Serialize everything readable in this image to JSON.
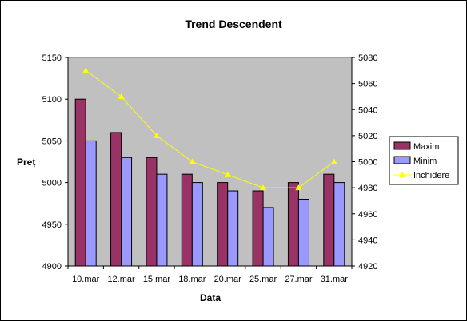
{
  "chart_data": {
    "type": "bar",
    "title": "Trend Descendent",
    "xlabel": "Data",
    "ylabel": "Preț",
    "categories": [
      "10.mar",
      "12.mar",
      "15.mar",
      "18.mar",
      "20.mar",
      "25.mar",
      "27.mar",
      "31.mar"
    ],
    "series": [
      {
        "name": "Maxim",
        "type": "bar",
        "axis": "left",
        "color": "#993366",
        "values": [
          5100,
          5060,
          5030,
          5010,
          5000,
          4990,
          5000,
          5010
        ]
      },
      {
        "name": "Minim",
        "type": "bar",
        "axis": "left",
        "color": "#9999FF",
        "values": [
          5050,
          5030,
          5010,
          5000,
          4990,
          4970,
          4980,
          5000
        ]
      },
      {
        "name": "Inchidere",
        "type": "line",
        "axis": "right",
        "color": "#FFFF00",
        "values": [
          5070,
          5050,
          5020,
          5000,
          4990,
          4980,
          4980,
          5000
        ]
      }
    ],
    "ylim": [
      4900,
      5150
    ],
    "yticks": [
      "4900",
      "4950",
      "5000",
      "5050",
      "5100",
      "5150"
    ],
    "y2lim": [
      4920,
      5080
    ],
    "y2ticks": [
      "4920",
      "4940",
      "4960",
      "4980",
      "5000",
      "5020",
      "5040",
      "5060",
      "5080"
    ],
    "grid": false,
    "plot_background": "#C0C0C0",
    "legend_position": "right"
  }
}
